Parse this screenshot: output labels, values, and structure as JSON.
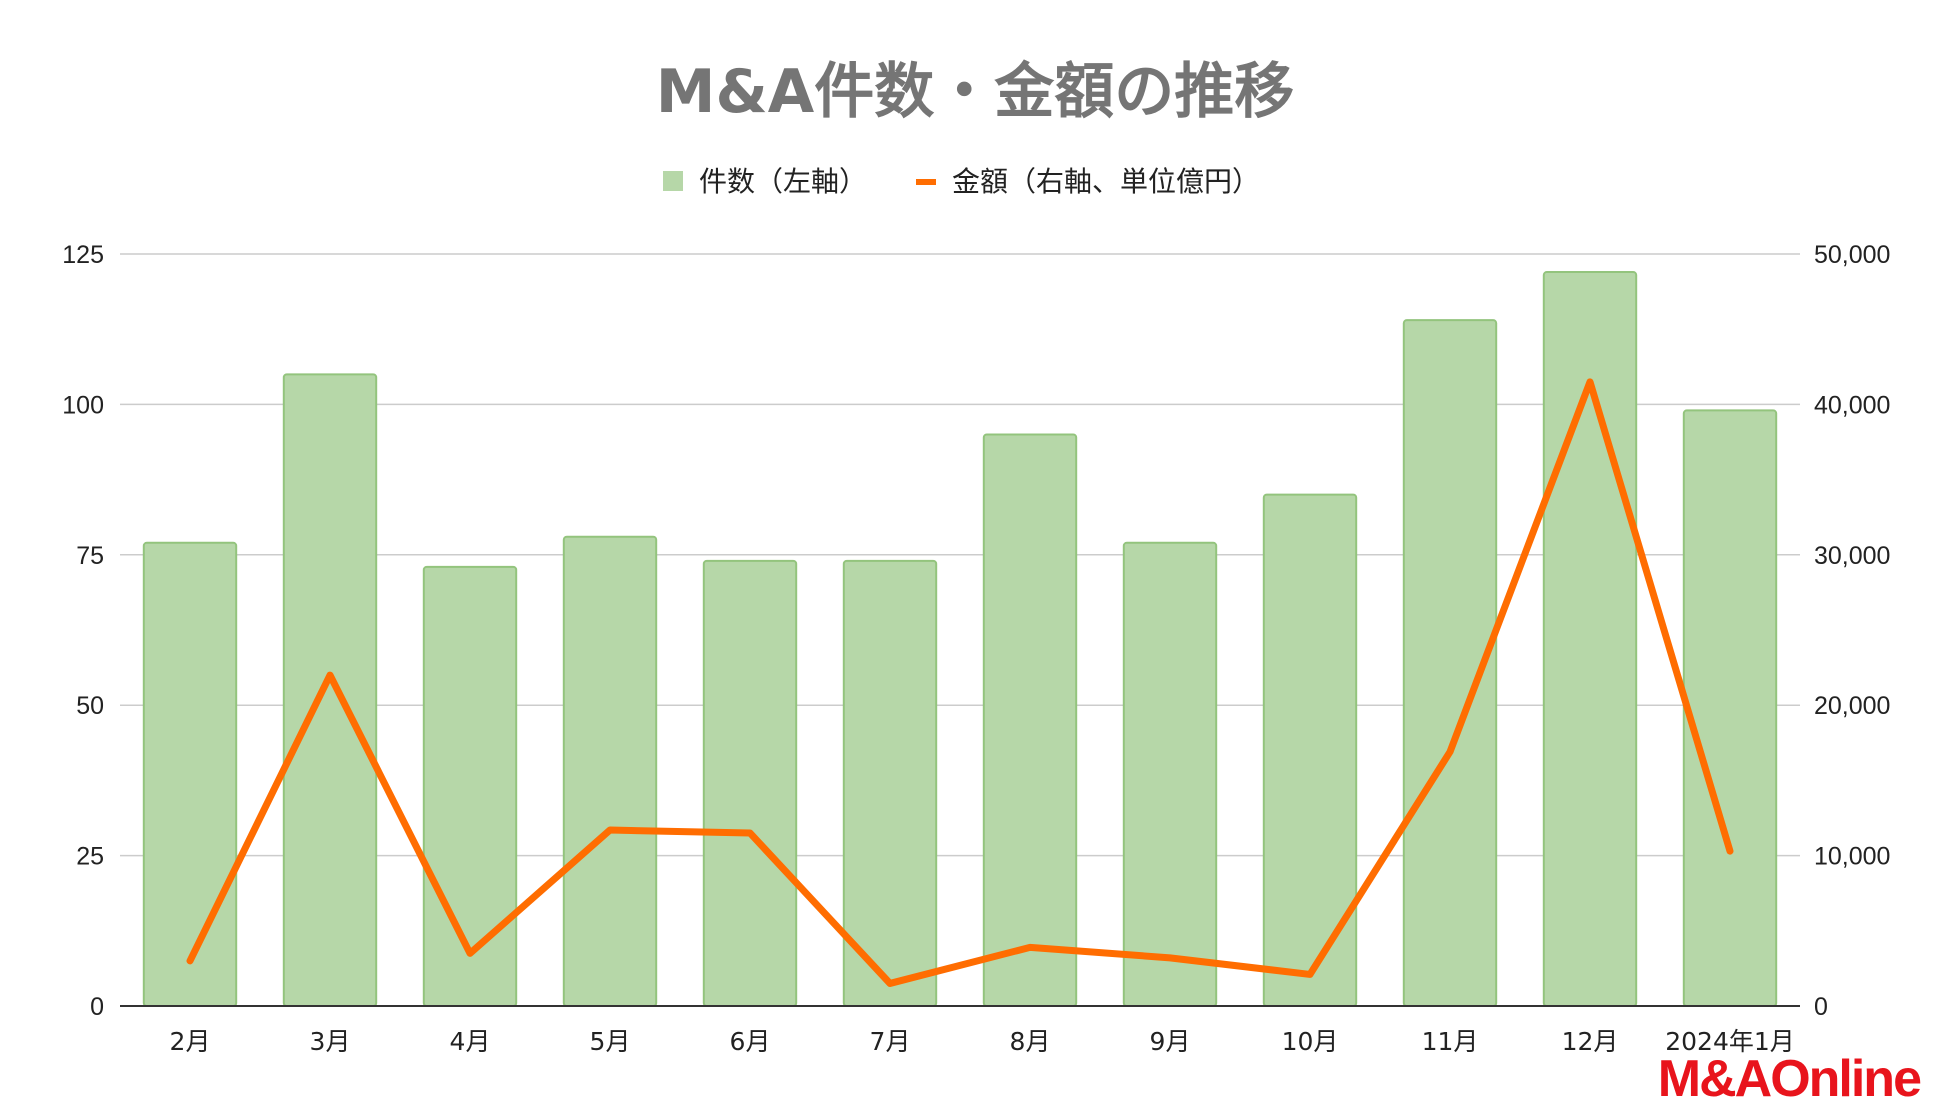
{
  "logo": {
    "text": "M&AOnline"
  },
  "colors": {
    "bar_fill": "#b6d7a8",
    "bar_stroke": "#93c47d",
    "line": "#ff6d01",
    "title": "#757575",
    "logo": "#e8141c"
  },
  "chart_data": {
    "type": "bar",
    "title": "M&A件数・金額の推移",
    "categories": [
      "2月",
      "3月",
      "4月",
      "5月",
      "6月",
      "7月",
      "8月",
      "9月",
      "10月",
      "11月",
      "12月",
      "2024年1月"
    ],
    "series": [
      {
        "name": "件数（左軸）",
        "type": "bar",
        "axis": "left",
        "values": [
          77,
          105,
          73,
          78,
          74,
          74,
          95,
          77,
          85,
          114,
          122,
          99
        ]
      },
      {
        "name": "金額（右軸、単位億円）",
        "type": "line",
        "axis": "right",
        "values": [
          3000,
          22000,
          3500,
          11700,
          11500,
          1500,
          3900,
          3200,
          2100,
          16900,
          41500,
          10300
        ]
      }
    ],
    "y_left": {
      "range": [
        0,
        125
      ],
      "ticks": [
        0,
        25,
        50,
        75,
        100,
        125
      ],
      "tick_labels": [
        "0",
        "25",
        "50",
        "75",
        "100",
        "125"
      ]
    },
    "y_right": {
      "range": [
        0,
        50000
      ],
      "ticks": [
        0,
        10000,
        20000,
        30000,
        40000,
        50000
      ],
      "tick_labels": [
        "0",
        "10,000",
        "20,000",
        "30,000",
        "40,000",
        "50,000"
      ]
    },
    "grid": true,
    "legend": "top"
  }
}
